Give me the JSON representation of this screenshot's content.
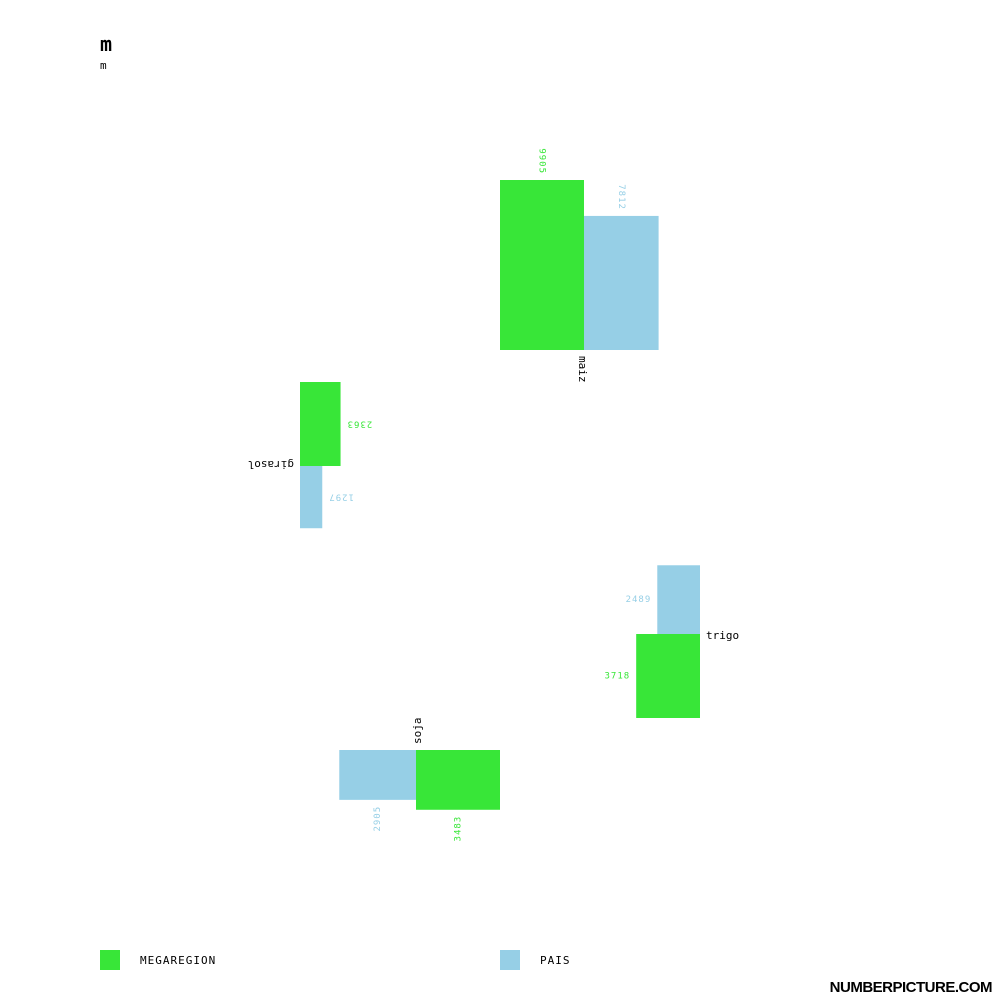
{
  "header": {
    "title": "m",
    "subtitle": "m"
  },
  "colors": {
    "megaregion": "#38e638",
    "pais": "#96cfe6",
    "text": "#000000"
  },
  "legend": [
    {
      "label": "MEGAREGION",
      "color": "#38e638"
    },
    {
      "label": "PAIS",
      "color": "#96cfe6"
    }
  ],
  "footer": {
    "text": "NUMBERPICTURE.COM"
  },
  "chart_data": {
    "type": "bar",
    "title": "",
    "xlabel": "",
    "ylabel": "",
    "categories": [
      "maiz",
      "girasol",
      "trigo",
      "soja"
    ],
    "series": [
      {
        "name": "MEGAREGION",
        "values": [
          9905,
          2363,
          3718,
          3483
        ]
      },
      {
        "name": "PAIS",
        "values": [
          7812,
          1297,
          2489,
          2905
        ]
      }
    ]
  }
}
